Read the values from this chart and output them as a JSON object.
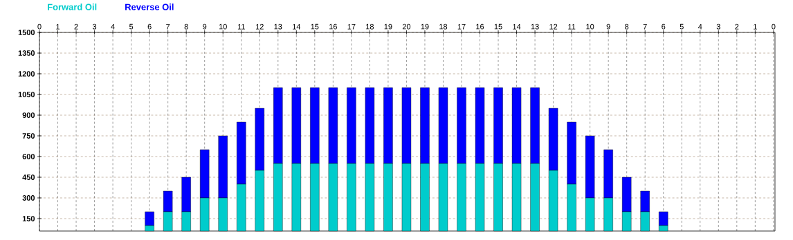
{
  "chart_data": {
    "type": "bar",
    "stacked": true,
    "categories": [
      "0",
      "1",
      "2",
      "3",
      "4",
      "5",
      "6",
      "7",
      "8",
      "9",
      "10",
      "11",
      "12",
      "13",
      "14",
      "15",
      "16",
      "17",
      "18",
      "19",
      "20",
      "19",
      "18",
      "17",
      "16",
      "15",
      "14",
      "13",
      "12",
      "11",
      "10",
      "9",
      "8",
      "7",
      "6",
      "5",
      "4",
      "3",
      "2",
      "1",
      "0"
    ],
    "series": [
      {
        "name": "Forward Oil",
        "color": "#00cccc",
        "values": [
          null,
          null,
          null,
          null,
          null,
          null,
          100,
          200,
          200,
          300,
          300,
          400,
          500,
          550,
          550,
          550,
          550,
          550,
          550,
          550,
          550,
          550,
          550,
          550,
          550,
          550,
          550,
          550,
          500,
          400,
          300,
          300,
          200,
          200,
          100,
          null,
          null,
          null,
          null,
          null,
          null
        ]
      },
      {
        "name": "Reverse Oil",
        "color": "#0000ff",
        "values": [
          null,
          null,
          null,
          null,
          null,
          null,
          100,
          150,
          250,
          350,
          450,
          450,
          450,
          550,
          550,
          550,
          550,
          550,
          550,
          550,
          550,
          550,
          550,
          550,
          550,
          550,
          550,
          550,
          450,
          450,
          450,
          350,
          250,
          150,
          100,
          null,
          null,
          null,
          null,
          null,
          null
        ]
      }
    ],
    "ylim": [
      60,
      1500
    ],
    "yticks": [
      150,
      300,
      450,
      600,
      750,
      900,
      1050,
      1200,
      1350,
      1500
    ],
    "grid": true,
    "legend": "top left"
  }
}
